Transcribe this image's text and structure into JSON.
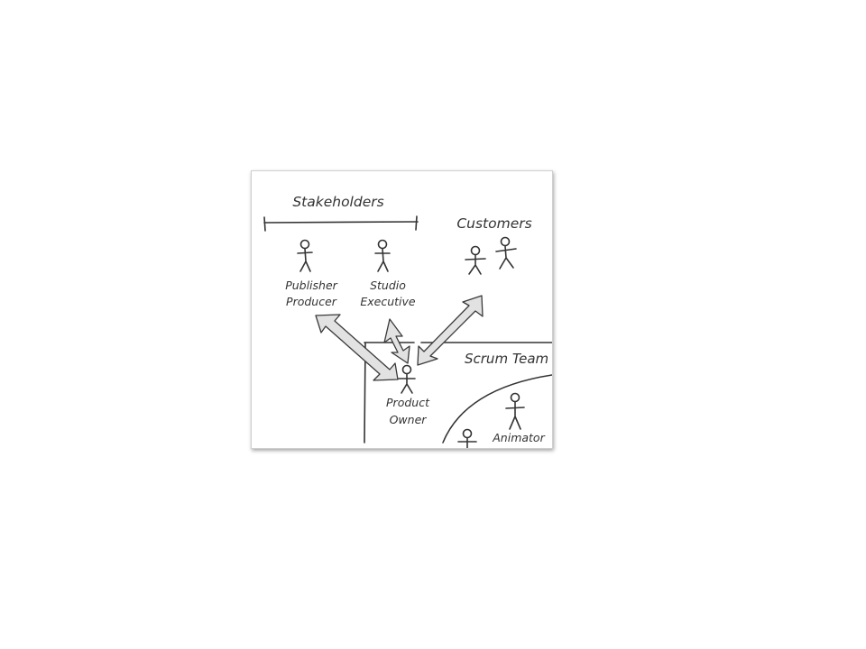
{
  "diagram": {
    "stakeholders_heading": "Stakeholders",
    "customers_heading": "Customers",
    "publisher_producer": [
      "Publisher",
      "Producer"
    ],
    "studio_executive": [
      "Studio",
      "Executive"
    ],
    "scrum_team_heading": "Scrum Team",
    "product_owner": [
      "Product",
      "Owner"
    ],
    "animator": "Animator",
    "colors": {
      "ink": "#333333",
      "arrow_fill": "#e2e2e2",
      "frame_border": "#cfcfcf"
    },
    "icons": [
      "stick-figure-icon",
      "double-arrow-icon"
    ]
  }
}
